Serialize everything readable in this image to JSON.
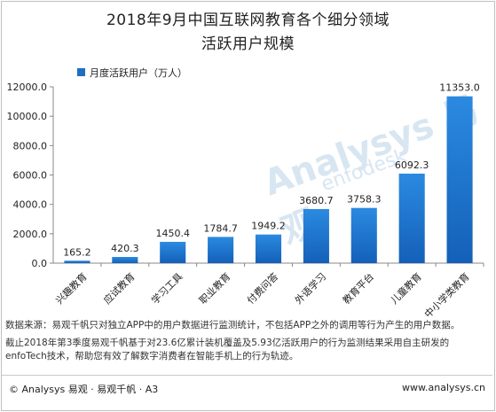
{
  "title_line1": "2018年9月中国互联网教育各个细分领域",
  "title_line2": "活跃用户规模",
  "notes": {
    "line1": "数据来源：易观千帆只对独立APP中的用户数据进行监测统计，不包括APP之外的调用等行为产生的用户数据。",
    "line2": "截止2018年第3季度易观千帆基于对23.6亿累计装机覆盖及5.93亿活跃用户的行为监测结果采用自主研发的",
    "line3": "enfoTech技术，帮助您有效了解数字消费者在智能手机上的行为轨迹。"
  },
  "footer": {
    "left": "© Analysys 易观 · 易观千帆 · A3",
    "right": "www.analysys.cn"
  },
  "watermark": {
    "text1": "Analysys 易观",
    "text2": "enfodesk"
  },
  "colors": {
    "bar_top": "#2b8ae0",
    "bar_bottom": "#1460b8",
    "axis": "#888888",
    "text": "#222222"
  },
  "chart_data": {
    "type": "bar",
    "categories": [
      "兴趣教育",
      "应试教育",
      "学习工具",
      "职业教育",
      "付费问答",
      "外语学习",
      "教育平台",
      "儿童教育",
      "中小学类教育"
    ],
    "series": [
      {
        "name": "月度活跃用户（万人）",
        "values": [
          165.2,
          420.3,
          1450.4,
          1784.7,
          1949.2,
          3680.7,
          3758.3,
          6092.3,
          11353.0
        ]
      }
    ],
    "value_labels": [
      "165.2",
      "420.3",
      "1450.4",
      "1784.7",
      "1949.2",
      "3680.7",
      "3758.3",
      "6092.3",
      "11353.0"
    ],
    "yticks": [
      "0.0",
      "2000.0",
      "4000.0",
      "6000.0",
      "8000.0",
      "10000.0",
      "12000.0"
    ],
    "ylim": [
      0,
      12000
    ],
    "legend_position": "top-left",
    "grid": false
  }
}
